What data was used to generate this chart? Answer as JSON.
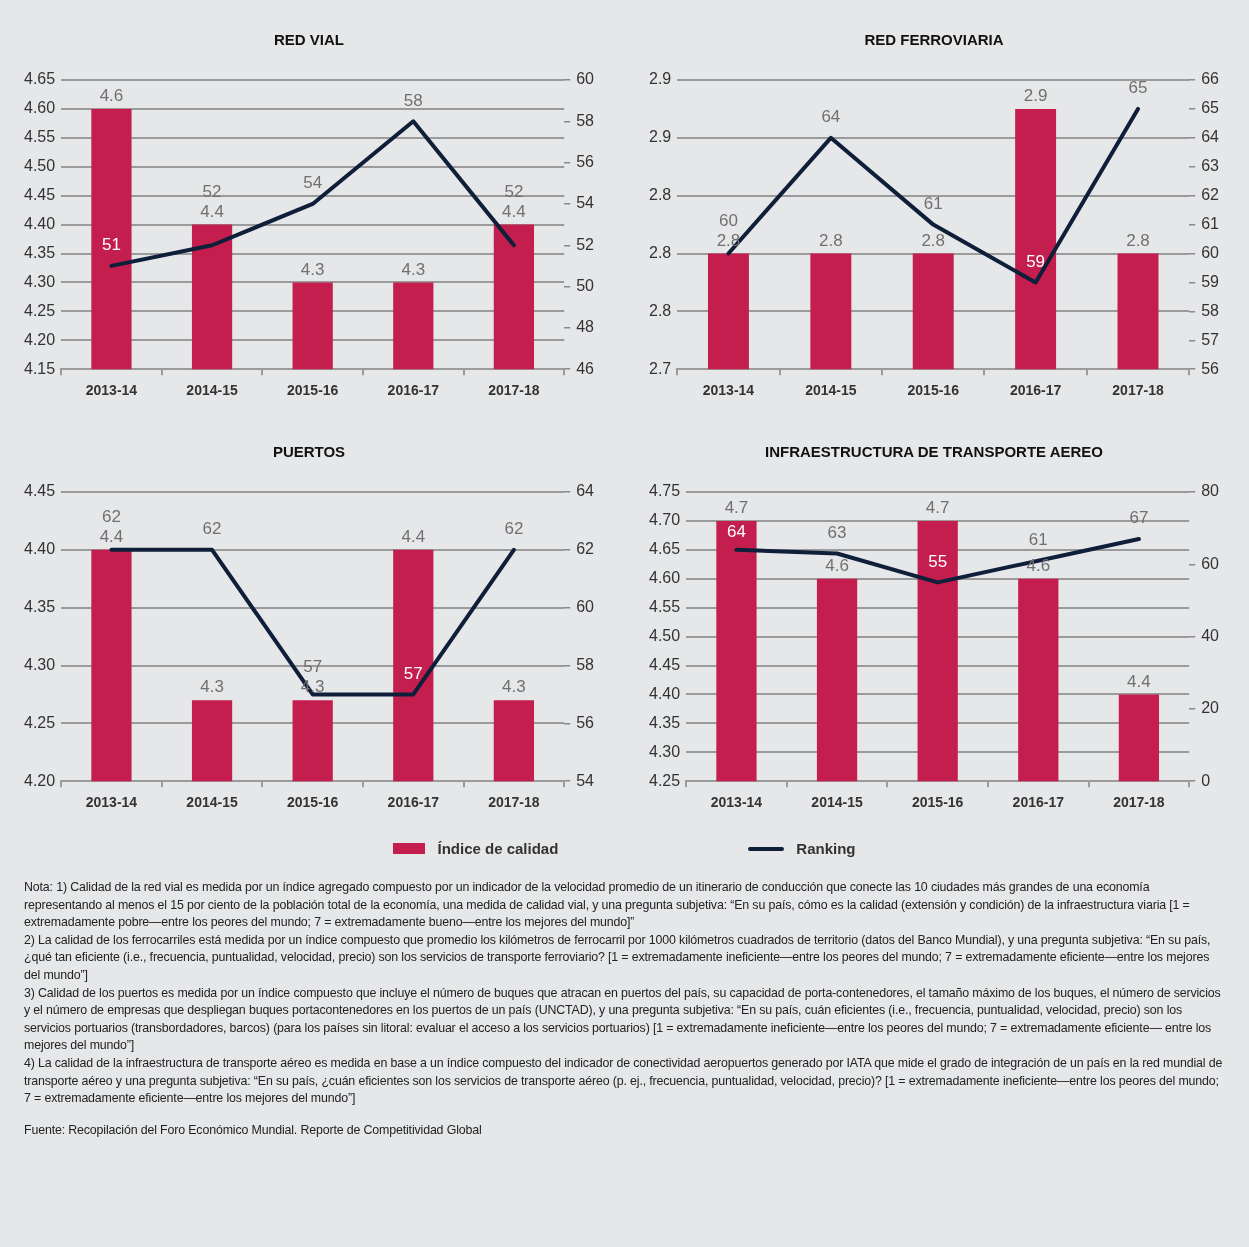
{
  "chart_data": [
    {
      "type": "bar",
      "title": "RED VIAL",
      "categories": [
        "2013-14",
        "2014-15",
        "2015-16",
        "2016-17",
        "2017-18"
      ],
      "ylim": [
        4.15,
        4.65
      ],
      "yticks": [
        4.15,
        {
          "value": 4.2,
          "label": "4.20"
        },
        4.25,
        {
          "value": 4.3,
          "label": "4.30"
        },
        4.35,
        {
          "value": 4.4,
          "label": "4.40"
        },
        4.45,
        {
          "value": 4.5,
          "label": "4.50"
        },
        4.55,
        {
          "value": 4.6,
          "label": "4.60"
        },
        4.65
      ],
      "y2lim": [
        46,
        60
      ],
      "y2ticks": [
        46,
        48,
        50,
        52,
        54,
        56,
        58,
        60
      ],
      "grid": "y",
      "legend": "bottom",
      "data_labels": true,
      "series": [
        {
          "name": "Índice de calidad",
          "color": "#c41e4f",
          "values": [
            4.6,
            4.4,
            4.3,
            4.3,
            4.4
          ]
        },
        {
          "name": "Ranking",
          "type": "line",
          "axis": "y2",
          "color": "#0f1f3a",
          "values": [
            51,
            52,
            54,
            58,
            52
          ]
        }
      ]
    },
    {
      "type": "bar",
      "title": "RED FERROVIARIA",
      "categories": [
        "2013-14",
        "2014-15",
        "2015-16",
        "2016-17",
        "2017-18"
      ],
      "ylim": [
        2.71,
        2.91
      ],
      "yticks": [
        {
          "value": 2.71,
          "label": "2.7"
        },
        {
          "value": 2.75,
          "label": "2.8"
        },
        {
          "value": 2.79,
          "label": "2.8"
        },
        {
          "value": 2.83,
          "label": "2.8"
        },
        {
          "value": 2.87,
          "label": "2.9"
        },
        {
          "value": 2.91,
          "label": "2.9"
        }
      ],
      "y2lim": [
        56,
        66
      ],
      "y2ticks": [
        56,
        57,
        58,
        59,
        60,
        61,
        62,
        63,
        64,
        65,
        66
      ],
      "grid": "y",
      "data_labels": true,
      "series": [
        {
          "color": "#c41e4f",
          "values": [
            2.79,
            2.79,
            2.79,
            2.89,
            2.79
          ],
          "value_labels": [
            "2.8",
            "2.8",
            "2.8",
            "2.9",
            "2.8"
          ]
        },
        {
          "type": "line",
          "axis": "y2",
          "color": "#0f1f3a",
          "values": [
            60,
            64,
            61,
            59,
            65
          ]
        }
      ]
    },
    {
      "type": "bar",
      "title": "PUERTOS",
      "categories": [
        "2013-14",
        "2014-15",
        "2015-16",
        "2016-17",
        "2017-18"
      ],
      "ylim": [
        4.2,
        4.45
      ],
      "yticks": [
        {
          "value": 4.2,
          "label": "4.20"
        },
        4.25,
        {
          "value": 4.3,
          "label": "4.30"
        },
        4.35,
        {
          "value": 4.4,
          "label": "4.40"
        },
        4.45
      ],
      "y2lim": [
        54,
        64
      ],
      "y2ticks": [
        54,
        56,
        58,
        60,
        62,
        64
      ],
      "grid": "y",
      "data_labels": true,
      "series": [
        {
          "color": "#c41e4f",
          "values": [
            4.4,
            4.27,
            4.27,
            4.4,
            4.27
          ],
          "value_labels": [
            "4.4",
            "4.3",
            "4.3",
            "4.4",
            "4.3"
          ]
        },
        {
          "type": "line",
          "axis": "y2",
          "color": "#0f1f3a",
          "values": [
            62,
            62,
            57,
            57,
            62
          ]
        }
      ]
    },
    {
      "type": "bar",
      "title": "INFRAESTRUCTURA DE TRANSPORTE AEREO",
      "categories": [
        "2013-14",
        "2014-15",
        "2015-16",
        "2016-17",
        "2017-18"
      ],
      "ylim": [
        4.25,
        4.75
      ],
      "yticks": [
        4.25,
        {
          "value": 4.3,
          "label": "4.30"
        },
        4.35,
        {
          "value": 4.4,
          "label": "4.40"
        },
        4.45,
        {
          "value": 4.5,
          "label": "4.50"
        },
        4.55,
        {
          "value": 4.6,
          "label": "4.60"
        },
        4.65,
        {
          "value": 4.7,
          "label": "4.70"
        },
        4.75
      ],
      "y2lim": [
        0,
        80
      ],
      "y2ticks": [
        0,
        20,
        40,
        60,
        80
      ],
      "grid": "y",
      "data_labels": true,
      "series": [
        {
          "color": "#c41e4f",
          "values": [
            4.7,
            4.6,
            4.7,
            4.6,
            4.4
          ]
        },
        {
          "type": "line",
          "axis": "y2",
          "color": "#0f1f3a",
          "values": [
            64,
            63,
            55,
            61,
            67
          ]
        }
      ],
      "annotations": [
        "Nota: 1) Calidad de la red vial es medida por un índice agregado compuesto por un indicador de la velocidad promedio de un itinerario de conducción que conecte las 10 ciudades más grandes de una economía representando al menos el 15 por ciento de la población total de la economía, una medida de calidad vial, y una pregunta subjetiva: “En su país, cómo es la calidad (extensión y condición) de la infraestructura viaria [1 = extremadamente pobre—entre los peores del mundo; 7 = extremadamente bueno—entre los mejores del mundo]”",
        "2) La calidad de los ferrocarriles está medida por un índice compuesto que promedio los kilómetros de ferrocarril por 1000 kilómetros cuadrados de territorio (datos del Banco Mundial), y una pregunta subjetiva: “En su país, ¿qué tan eficiente (i.e., frecuencia, puntualidad, velocidad, precio) son los servicios de transporte ferroviario? [1 = extremadamente ineficiente—entre los peores del mundo; 7 = extremadamente eficiente—entre los mejores del mundo”]",
        "3) Calidad de los puertos es medida por un índice compuesto que incluye el número de buques que atracan en puertos del país, su capacidad de porta-contenedores, el tamaño máximo de los buques, el número de servicios y el número de empresas que despliegan buques portacontenedores en los puertos de un país (UNCTAD), y una pregunta subjetiva: “En su país, cuán eficientes (i.e., frecuencia, puntualidad, velocidad, precio) son los servicios portuarios (transbordadores, barcos) (para los países sin litoral: evaluar el acceso a los servicios portuarios) [1 = extremadamente ineficiente—entre los peores del mundo; 7 = extremadamente eficiente— entre los mejores del mundo”]",
        "4) La calidad de la infraestructura de transporte aéreo es medida en base a un índice compuesto del indicador de conectividad aeropuertos generado por IATA que mide el grado de integración de un país en la red mundial de transporte aéreo y una pregunta subjetiva: “En su país, ¿cuán eficientes son los servicios de transporte aéreo (p. ej., frecuencia, puntualidad, velocidad, precio)? [1 = extremadamente ineficiente—entre los peores del mundo; 7 = extremadamente eficiente—entre los mejores del mundo”]",
        "Fuente: Recopilación del Foro Económico Mundial. Reporte de Competitividad Global"
      ]
    }
  ]
}
